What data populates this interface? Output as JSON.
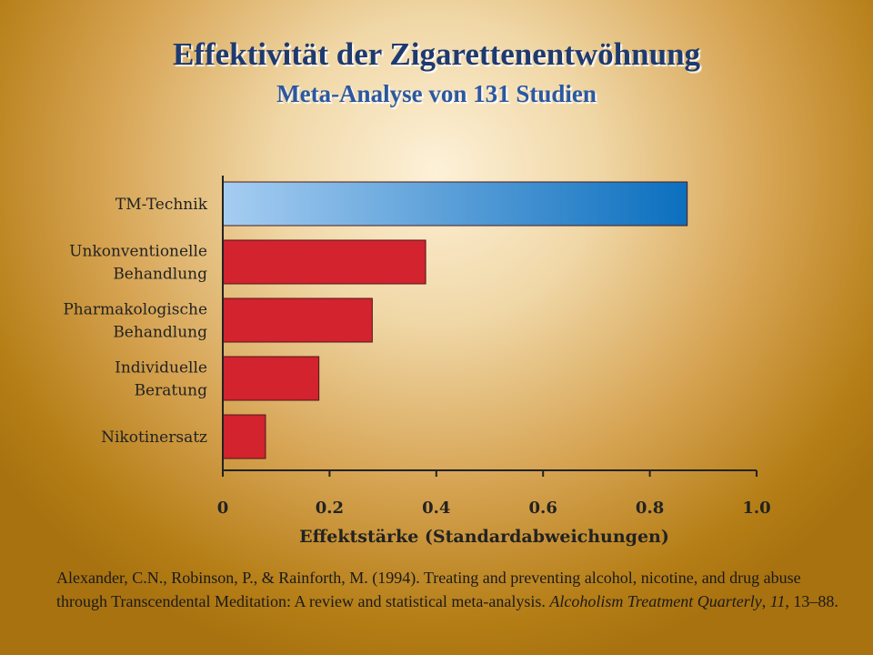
{
  "header": {
    "title": "Effektivität der Zigarettenentwöhnung",
    "subtitle": "Meta-Analyse von 131 Studien"
  },
  "chart_data": {
    "type": "bar",
    "orientation": "horizontal",
    "categories": [
      [
        "TM-Technik"
      ],
      [
        "Unkonventionelle",
        "Behandlung"
      ],
      [
        "Pharmakologische",
        "Behandlung"
      ],
      [
        "Individuelle",
        "Beratung"
      ],
      [
        "Nikotinersatz"
      ]
    ],
    "values": [
      0.87,
      0.38,
      0.28,
      0.18,
      0.08
    ],
    "xlabel": "Effektstärke (Standardabweichungen)",
    "xlim": [
      0,
      1.0
    ],
    "xticks": [
      "0",
      "0.2",
      "0.4",
      "0.6",
      "0.8",
      "1.0"
    ],
    "grid": false,
    "colors": {
      "highlight_start": "#a6cdf1",
      "highlight_end": "#0b6fbe",
      "bar": "#d2232e",
      "outline": "#4a1a1a"
    }
  },
  "citation": {
    "prefix": "Alexander, C.N., Robinson, P., & Rainforth, M. (1994). Treating and preventing alcohol, nicotine, and drug abuse through Transcendental Meditation: A review and statistical meta-analysis. ",
    "journal": "Alcoholism Treatment Quarterly",
    "sep1": ", ",
    "volume": "11",
    "suffix": ", 13–88."
  }
}
